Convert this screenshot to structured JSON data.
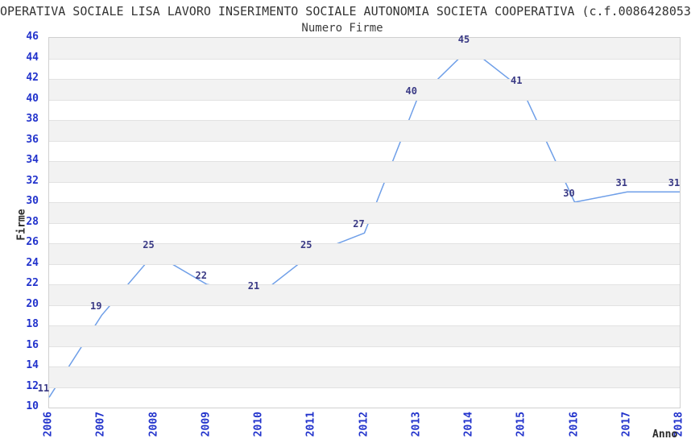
{
  "chart_data": {
    "type": "line",
    "title": "OPERATIVA SOCIALE LISA LAVORO INSERIMENTO SOCIALE AUTONOMIA SOCIETA COOPERATIVA (c.f.0086428053",
    "subtitle": "Numero Firme",
    "xlabel": "Anno",
    "ylabel": "Firme",
    "x": [
      2006,
      2007,
      2008,
      2009,
      2010,
      2011,
      2012,
      2013,
      2014,
      2015,
      2016,
      2017,
      2018
    ],
    "values": [
      11,
      19,
      25,
      22,
      21,
      25,
      27,
      40,
      45,
      41,
      30,
      31,
      31
    ],
    "ylim": [
      10,
      46
    ],
    "ytick_step": 2,
    "yticks": [
      10,
      12,
      14,
      16,
      18,
      20,
      22,
      24,
      26,
      28,
      30,
      32,
      34,
      36,
      38,
      40,
      42,
      44,
      46
    ],
    "grid": "horizontal-alternating-bands",
    "legend": "none",
    "data_labels_visible": true,
    "colors": {
      "line": "#6f9fe8",
      "tick_label": "#2233cc",
      "data_label": "#3a3a85",
      "band_gray": "#f2f2f2",
      "gridline": "#e2e2e2",
      "plot_border": "#d0d0d0",
      "text": "#333333"
    }
  }
}
